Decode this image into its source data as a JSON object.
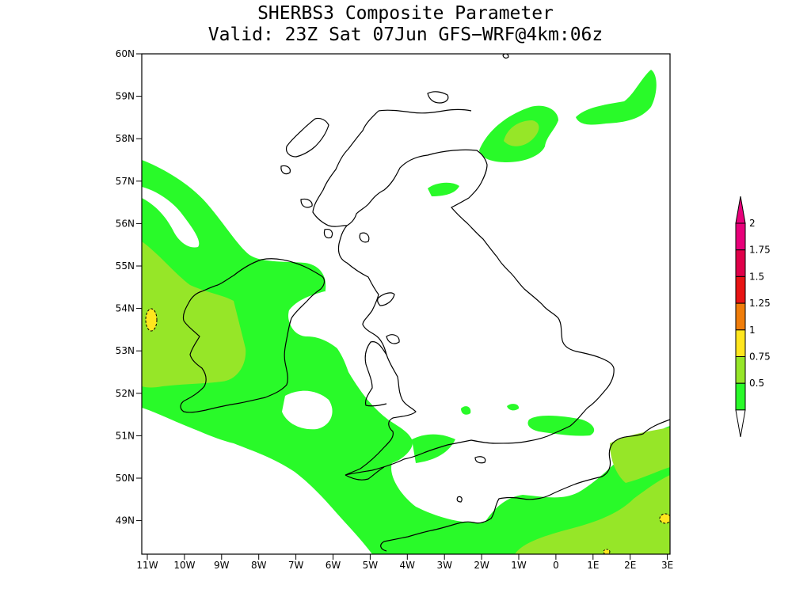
{
  "title": {
    "line1": "SHERBS3 Composite Parameter",
    "line2": "Valid: 23Z Sat 07Jun GFS−WRF@4km:06z"
  },
  "axes": {
    "lat_labels": [
      "60N",
      "59N",
      "58N",
      "57N",
      "56N",
      "55N",
      "54N",
      "53N",
      "52N",
      "51N",
      "50N",
      "49N"
    ],
    "lon_labels": [
      "11W",
      "10W",
      "9W",
      "8W",
      "7W",
      "6W",
      "5W",
      "4W",
      "3W",
      "2W",
      "1W",
      "0",
      "1E",
      "2E",
      "3E"
    ]
  },
  "colorbar": {
    "levels": [
      "2",
      "1.75",
      "1.5",
      "1.25",
      "1",
      "0.75",
      "0.5"
    ],
    "colors": [
      "#e8007a",
      "#e0004a",
      "#e81414",
      "#f07d0a",
      "#ffe61e",
      "#96e628",
      "#29fa29"
    ],
    "top_arrow_color": "#e8007a",
    "bottom_arrow_color": "#ffffff"
  },
  "fill_colors": {
    "band_05_075": "#29fa29",
    "band_075_1": "#96e628",
    "band_1_125": "#ffe61e"
  }
}
